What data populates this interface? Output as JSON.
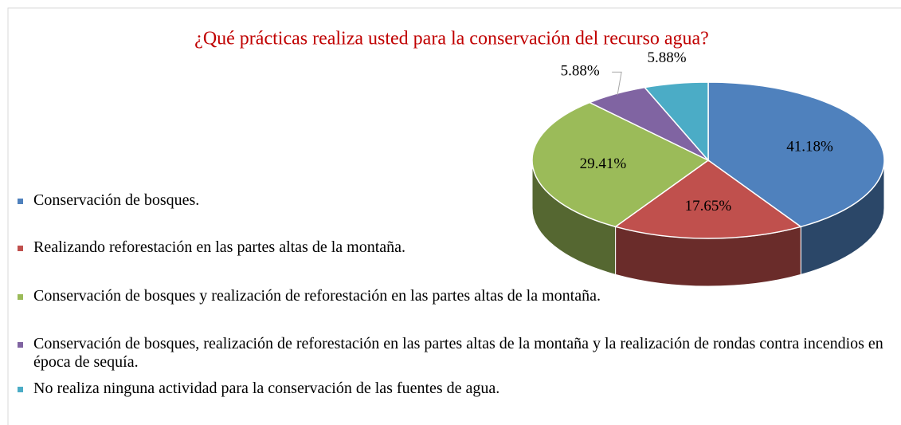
{
  "chart_data": {
    "type": "pie3d",
    "title": "¿Qué prácticas realiza usted para la conservación del recurso agua?",
    "categories": [
      "Conservación de bosques.",
      "Realizando reforestación en las partes altas de la montaña.",
      "Conservación de bosques y realización de reforestación en las partes altas de la montaña.",
      "Conservación de bosques, realización de reforestación en las partes altas de la montaña y la realización de rondas contra incendios en época de sequía.",
      "No realiza ninguna actividad para la conservación de las fuentes de agua."
    ],
    "values": [
      41.18,
      17.65,
      29.41,
      5.88,
      5.88
    ],
    "value_labels": [
      "41.18%",
      "17.65%",
      "29.41%",
      "5.88%",
      "5.88%"
    ],
    "colors": [
      "#4f81bd",
      "#c0504d",
      "#9bbb59",
      "#8064a2",
      "#4bacc6"
    ],
    "legend": "left"
  }
}
